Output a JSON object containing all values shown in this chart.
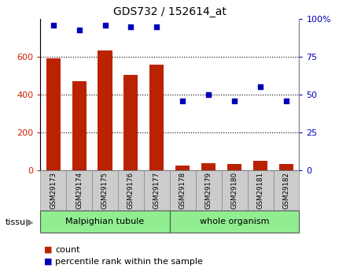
{
  "title": "GDS732 / 152614_at",
  "samples": [
    "GSM29173",
    "GSM29174",
    "GSM29175",
    "GSM29176",
    "GSM29177",
    "GSM29178",
    "GSM29179",
    "GSM29180",
    "GSM29181",
    "GSM29182"
  ],
  "counts": [
    590,
    470,
    635,
    505,
    560,
    25,
    38,
    30,
    48,
    32
  ],
  "percentile": [
    96,
    93,
    96,
    95,
    95,
    46,
    50,
    46,
    55,
    46
  ],
  "group_labels": [
    "Malpighian tubule",
    "whole organism"
  ],
  "group_ranges": [
    [
      0,
      5
    ],
    [
      5,
      10
    ]
  ],
  "group_colors": [
    "#90ee90",
    "#90ee90"
  ],
  "bar_color": "#bb2200",
  "dot_color": "#0000bb",
  "ylim_left": [
    0,
    800
  ],
  "ylim_right": [
    0,
    100
  ],
  "yticks_left": [
    0,
    200,
    400,
    600
  ],
  "yticks_right": [
    0,
    25,
    50,
    75,
    100
  ],
  "yticklabels_right": [
    "0",
    "25",
    "50",
    "75",
    "100%"
  ],
  "tissue_label": "tissue",
  "legend_count_label": "count",
  "legend_pct_label": "percentile rank within the sample",
  "bar_width": 0.55,
  "bg_color": "#ffffff",
  "tick_label_color_left": "#cc2200",
  "tick_label_color_right": "#0000cc",
  "sample_bg_color": "#cccccc",
  "sample_border_color": "#888888"
}
